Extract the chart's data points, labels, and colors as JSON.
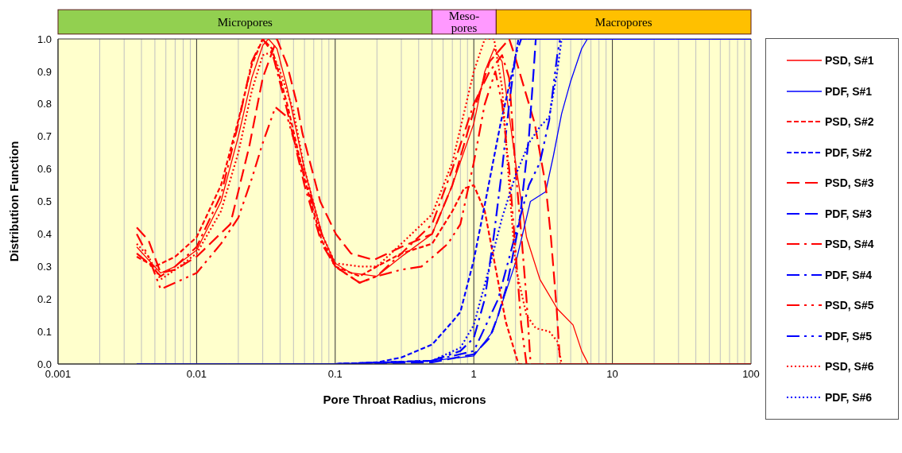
{
  "chart_data": {
    "type": "line",
    "xlabel": "Pore Throat Radius, microns",
    "ylabel": "Distribution Function",
    "log": "x",
    "grid": true,
    "legend": "right",
    "xlim": [
      0.001,
      100
    ],
    "xticks": [
      0.001,
      0.01,
      0.1,
      1,
      10,
      100
    ],
    "ylim": [
      0,
      1
    ],
    "yticks": [
      {
        "value": 0,
        "label": "0.0"
      },
      {
        "value": 0.1,
        "label": "0.1"
      },
      {
        "value": 0.2,
        "label": "0.2"
      },
      {
        "value": 0.3,
        "label": "0.3"
      },
      {
        "value": 0.4,
        "label": "0.4"
      },
      {
        "value": 0.5,
        "label": "0.5"
      },
      {
        "value": 0.6,
        "label": "0.6"
      },
      {
        "value": 0.7,
        "label": "0.7"
      },
      {
        "value": 0.8,
        "label": "0.8"
      },
      {
        "value": 0.9,
        "label": "0.9"
      },
      {
        "value": 1,
        "label": "1.0"
      }
    ],
    "bands": [
      {
        "axis": "x",
        "from": 0.001,
        "to": 0.5,
        "label": "Micropores",
        "color": "#92d050"
      },
      {
        "axis": "x",
        "from": 0.5,
        "to": 1.45,
        "label": "Meso-pores",
        "color": "#ff99ff"
      },
      {
        "axis": "x",
        "from": 1.45,
        "to": 100,
        "label": "Macropores",
        "color": "#ffc000"
      }
    ],
    "series": [
      {
        "name": "PSD, S#1",
        "color": "#ff0000",
        "line_style": "solid",
        "x": [
          0.0037,
          0.0045,
          0.0055,
          0.007,
          0.01,
          0.015,
          0.02,
          0.025,
          0.03,
          0.033,
          0.038,
          0.045,
          0.06,
          0.08,
          0.1,
          0.13,
          0.2,
          0.3,
          0.5,
          0.7,
          1,
          1.2,
          1.4,
          1.6,
          2,
          2.4,
          3,
          4,
          5.2,
          6,
          6.7,
          100
        ],
        "values": [
          0.36,
          0.32,
          0.28,
          0.3,
          0.35,
          0.5,
          0.7,
          0.88,
          0.98,
          1,
          0.97,
          0.85,
          0.6,
          0.4,
          0.31,
          0.28,
          0.27,
          0.33,
          0.4,
          0.55,
          0.74,
          0.9,
          0.97,
          0.93,
          0.62,
          0.39,
          0.26,
          0.17,
          0.12,
          0.04,
          0,
          0
        ]
      },
      {
        "name": "PDF, S#1",
        "color": "#0000ff",
        "line_style": "solid",
        "x": [
          0.0037,
          0.1,
          0.5,
          1,
          1.37,
          2.03,
          2.56,
          3.3,
          3.75,
          4.3,
          5,
          6,
          6.6,
          100
        ],
        "values": [
          0,
          0,
          0.01,
          0.025,
          0.1,
          0.32,
          0.5,
          0.53,
          0.64,
          0.77,
          0.87,
          0.97,
          1,
          1
        ]
      },
      {
        "name": "PSD, S#2",
        "color": "#ff0000",
        "line_style": "dashed",
        "x": [
          0.0037,
          0.0045,
          0.005,
          0.007,
          0.01,
          0.015,
          0.02,
          0.025,
          0.03,
          0.035,
          0.045,
          0.06,
          0.08,
          0.1,
          0.15,
          0.2,
          0.3,
          0.5,
          0.7,
          0.85,
          1,
          1.2,
          1.4,
          1.7,
          2.1,
          100
        ],
        "values": [
          0.33,
          0.31,
          0.3,
          0.33,
          0.39,
          0.55,
          0.75,
          0.92,
          1,
          0.97,
          0.8,
          0.57,
          0.38,
          0.3,
          0.27,
          0.3,
          0.34,
          0.37,
          0.47,
          0.54,
          0.55,
          0.47,
          0.32,
          0.13,
          0,
          0
        ]
      },
      {
        "name": "PDF, S#2",
        "color": "#0000ff",
        "line_style": "dashed",
        "x": [
          0.0037,
          0.1,
          0.2,
          0.3,
          0.5,
          0.7,
          0.8,
          1,
          1.2,
          1.56,
          1.97,
          2.1,
          100
        ],
        "values": [
          0,
          0,
          0.005,
          0.02,
          0.06,
          0.13,
          0.16,
          0.32,
          0.49,
          0.74,
          0.93,
          1,
          1
        ]
      },
      {
        "name": "PSD, S#3",
        "color": "#ff0000",
        "line_style": "longdash",
        "x": [
          0.0037,
          0.0045,
          0.0055,
          0.007,
          0.01,
          0.0175,
          0.024,
          0.03,
          0.038,
          0.045,
          0.053,
          0.058,
          0.078,
          0.101,
          0.13,
          0.19,
          0.3,
          0.5,
          0.7,
          1,
          1.3,
          1.8,
          1.97,
          2.2,
          2.75,
          3.3,
          3.6,
          3.96,
          4.2,
          100
        ],
        "values": [
          0.42,
          0.38,
          0.28,
          0.29,
          0.33,
          0.43,
          0.67,
          0.88,
          1,
          0.92,
          0.8,
          0.71,
          0.5,
          0.4,
          0.34,
          0.32,
          0.36,
          0.4,
          0.55,
          0.78,
          0.93,
          1,
          0.95,
          0.88,
          0.74,
          0.55,
          0.39,
          0.17,
          0,
          0
        ]
      },
      {
        "name": "PDF, S#3",
        "color": "#0000ff",
        "line_style": "longdash",
        "x": [
          0.0037,
          0.1,
          0.5,
          1,
          1.3,
          1.5,
          1.73,
          2.14,
          2.5,
          2.7,
          2.8,
          100
        ],
        "values": [
          0,
          0,
          0.005,
          0.03,
          0.08,
          0.15,
          0.24,
          0.44,
          0.7,
          0.9,
          1,
          1
        ]
      },
      {
        "name": "PSD, S#4",
        "color": "#ff0000",
        "line_style": "dashdot",
        "x": [
          0.0037,
          0.0045,
          0.0055,
          0.007,
          0.01,
          0.015,
          0.02,
          0.025,
          0.03,
          0.035,
          0.045,
          0.06,
          0.08,
          0.1,
          0.15,
          0.2,
          0.3,
          0.5,
          0.7,
          1,
          1.3,
          1.6,
          1.8,
          2,
          2.2,
          2.4,
          2.57,
          100
        ],
        "values": [
          0.34,
          0.31,
          0.27,
          0.3,
          0.36,
          0.52,
          0.74,
          0.93,
          1,
          0.96,
          0.78,
          0.55,
          0.37,
          0.3,
          0.25,
          0.27,
          0.34,
          0.43,
          0.6,
          0.8,
          0.9,
          0.95,
          0.88,
          0.6,
          0.4,
          0.2,
          0,
          0
        ]
      },
      {
        "name": "PDF, S#4",
        "color": "#0000ff",
        "line_style": "dashdot",
        "x": [
          0.0037,
          0.1,
          0.5,
          0.8,
          1,
          1.2,
          1.4,
          1.6,
          1.8,
          2,
          2.2,
          100
        ],
        "values": [
          0,
          0,
          0.01,
          0.04,
          0.08,
          0.2,
          0.4,
          0.6,
          0.8,
          0.95,
          1,
          1
        ]
      },
      {
        "name": "PSD, S#5",
        "color": "#ff0000",
        "line_style": "dashdotdot",
        "x": [
          0.0037,
          0.0045,
          0.0055,
          0.007,
          0.01,
          0.015,
          0.02,
          0.025,
          0.03,
          0.037,
          0.045,
          0.06,
          0.08,
          0.1,
          0.15,
          0.2,
          0.3,
          0.42,
          0.54,
          0.65,
          0.8,
          1,
          1.2,
          1.43,
          1.6,
          1.8,
          2,
          2.2,
          2.4,
          100
        ],
        "values": [
          0.4,
          0.33,
          0.23,
          0.25,
          0.28,
          0.37,
          0.45,
          0.57,
          0.68,
          0.79,
          0.76,
          0.58,
          0.4,
          0.3,
          0.25,
          0.27,
          0.29,
          0.3,
          0.34,
          0.37,
          0.43,
          0.62,
          0.8,
          0.9,
          0.8,
          0.6,
          0.35,
          0.12,
          0,
          0
        ]
      },
      {
        "name": "PDF, S#5",
        "color": "#0000ff",
        "line_style": "dashdotdot",
        "x": [
          0.0037,
          0.1,
          0.5,
          1,
          1.5,
          2,
          2.5,
          3,
          3.5,
          4,
          4.2,
          100
        ],
        "values": [
          0,
          0,
          0.01,
          0.04,
          0.2,
          0.4,
          0.55,
          0.62,
          0.75,
          0.95,
          1,
          1
        ]
      },
      {
        "name": "PSD, S#6",
        "color": "#ff0000",
        "line_style": "dotted",
        "x": [
          0.0037,
          0.0045,
          0.0055,
          0.007,
          0.01,
          0.015,
          0.02,
          0.025,
          0.03,
          0.035,
          0.04,
          0.05,
          0.06,
          0.08,
          0.1,
          0.15,
          0.2,
          0.3,
          0.5,
          0.7,
          1,
          1.2,
          1.4,
          1.6,
          1.8,
          2,
          2.4,
          2.8,
          3.5,
          4,
          4.3,
          100
        ],
        "values": [
          0.37,
          0.33,
          0.26,
          0.29,
          0.34,
          0.47,
          0.65,
          0.84,
          0.95,
          0.96,
          0.9,
          0.78,
          0.6,
          0.4,
          0.31,
          0.3,
          0.3,
          0.37,
          0.46,
          0.62,
          0.9,
          1,
          1,
          0.85,
          0.55,
          0.3,
          0.15,
          0.11,
          0.1,
          0.07,
          0,
          0
        ]
      },
      {
        "name": "PDF, S#6",
        "color": "#0000ff",
        "line_style": "dotted",
        "x": [
          0.0037,
          0.1,
          0.5,
          0.8,
          1,
          1.3,
          1.6,
          2,
          2.5,
          3,
          3.5,
          4,
          4.3,
          100
        ],
        "values": [
          0,
          0,
          0.01,
          0.05,
          0.12,
          0.3,
          0.45,
          0.58,
          0.68,
          0.73,
          0.76,
          0.9,
          1,
          1
        ]
      }
    ]
  }
}
